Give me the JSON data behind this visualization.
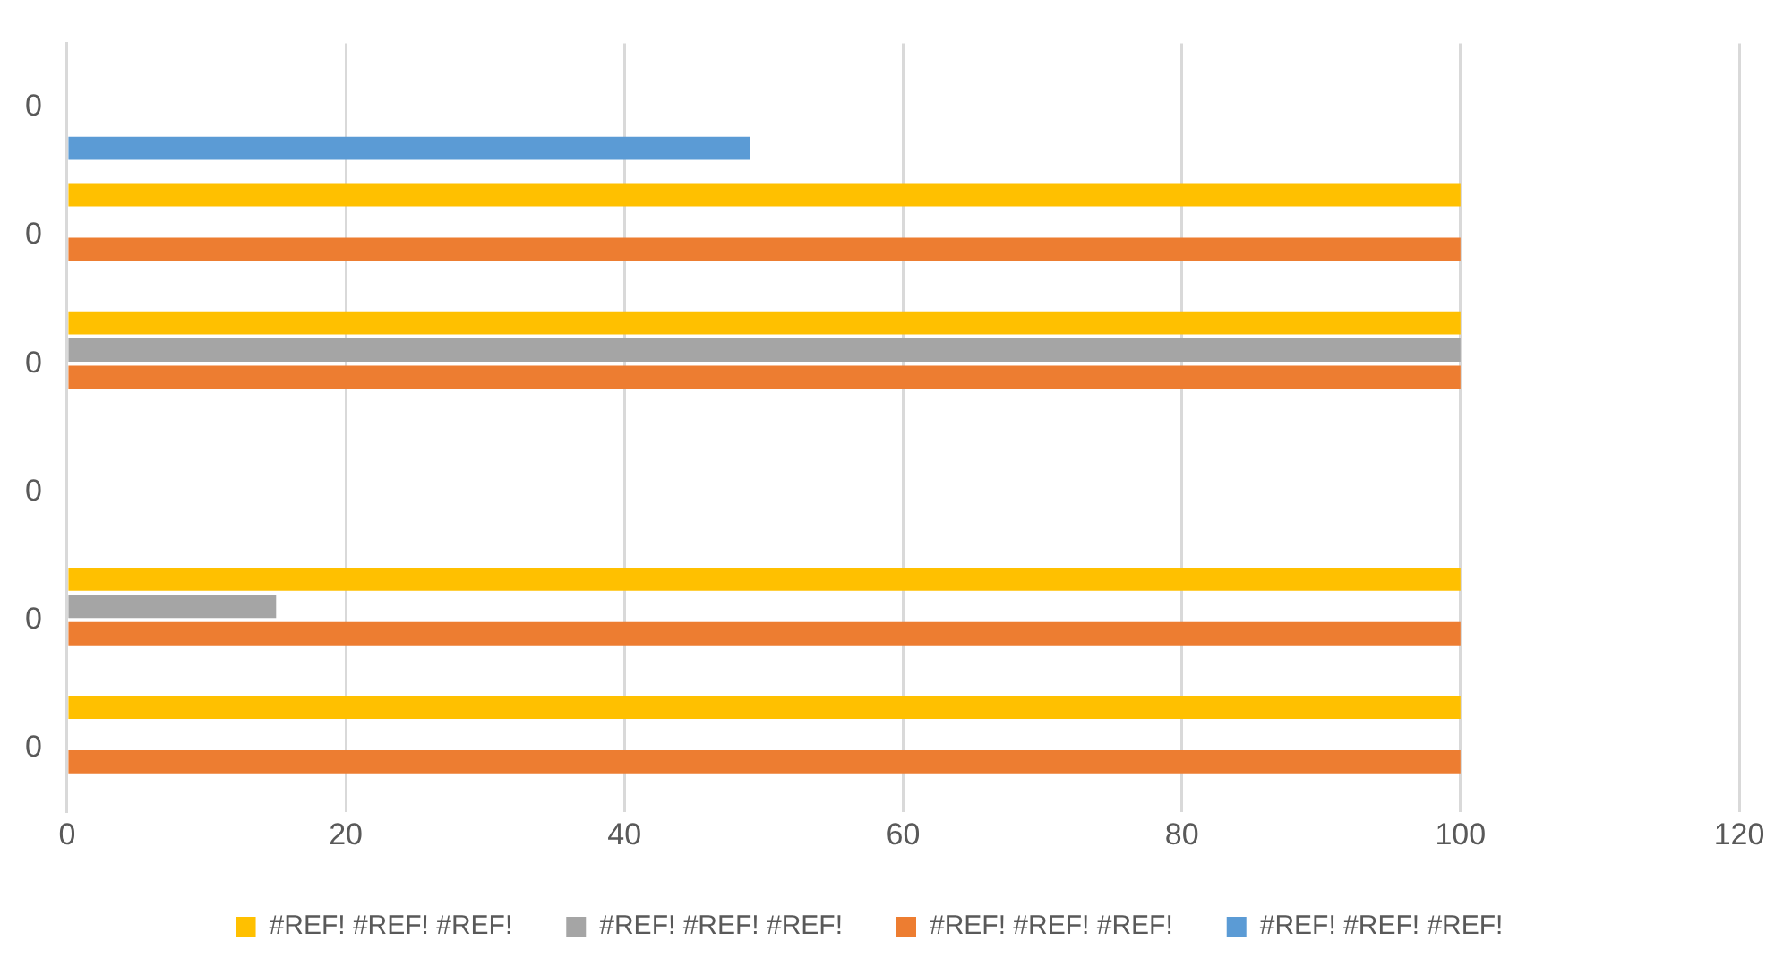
{
  "chart_data": {
    "type": "bar",
    "orientation": "horizontal",
    "categories": [
      "0",
      "0",
      "0",
      "0",
      "0",
      "0"
    ],
    "series": [
      {
        "name": "#REF! #REF! #REF!",
        "color": "#ffc000",
        "values": [
          null,
          100,
          100,
          null,
          100,
          100
        ]
      },
      {
        "name": "#REF! #REF! #REF!",
        "color": "#a5a5a5",
        "values": [
          null,
          null,
          100,
          null,
          15,
          null
        ]
      },
      {
        "name": "#REF! #REF! #REF!",
        "color": "#ed7d31",
        "values": [
          null,
          100,
          100,
          null,
          100,
          100
        ]
      },
      {
        "name": "#REF! #REF! #REF!",
        "color": "#5b9bd5",
        "values": [
          49,
          null,
          null,
          null,
          null,
          null
        ]
      }
    ],
    "xlim": [
      0,
      120
    ],
    "xticks": [
      0,
      20,
      40,
      60,
      80,
      100,
      120
    ],
    "grid": "x",
    "legend": "bottom"
  }
}
